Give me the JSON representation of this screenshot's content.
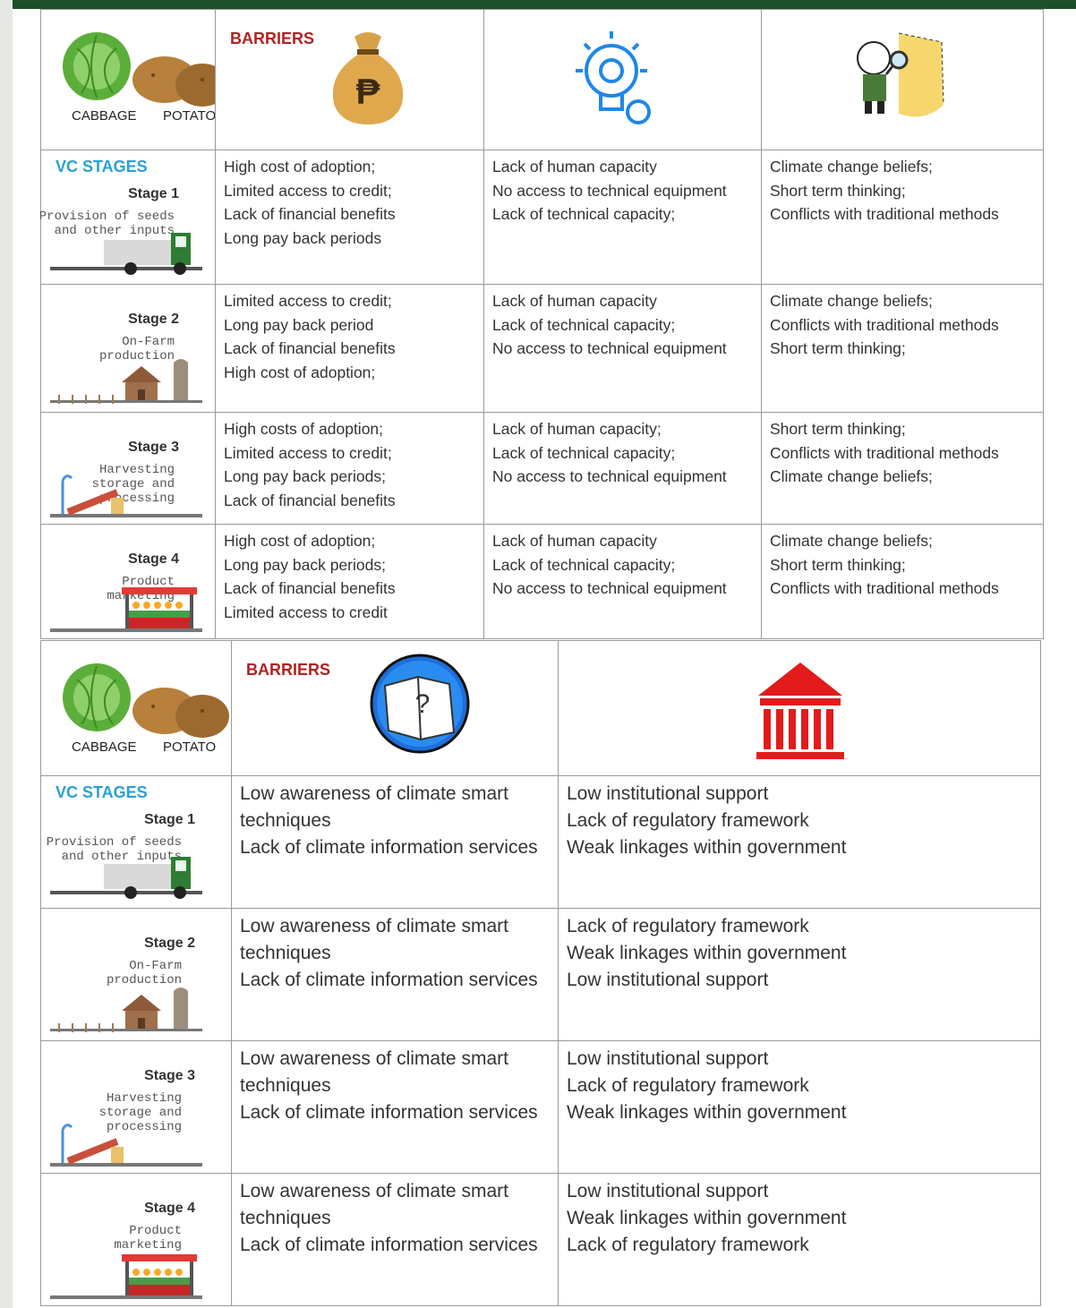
{
  "tables": [
    {
      "crops": [
        "CABBAGE",
        "POTATO"
      ],
      "barriers_label": "BARRIERS",
      "vc_stages_label": "VC STAGES",
      "rows": [
        {
          "stage": "Stage 1",
          "activity": [
            "Provision of seeds",
            "and other inputs"
          ],
          "barriers": [
            [
              "High cost of adoption;",
              "Limited access to credit;",
              "Lack of financial benefits",
              "Long pay back periods"
            ],
            [
              "Lack of human capacity",
              "No access to technical equipment",
              "Lack of technical capacity;"
            ],
            [
              "Climate change beliefs;",
              "Short term thinking;",
              "Conflicts with traditional methods"
            ]
          ]
        },
        {
          "stage": "Stage 2",
          "activity": [
            "On-Farm",
            "production"
          ],
          "barriers": [
            [
              "Limited access to credit;",
              "Long pay back period",
              "Lack of financial benefits",
              "High cost of adoption;"
            ],
            [
              "Lack of human capacity",
              "Lack of technical capacity;",
              "No access to technical equipment"
            ],
            [
              "Climate change beliefs;",
              "Conflicts with traditional methods",
              "Short term thinking;"
            ]
          ]
        },
        {
          "stage": "Stage 3",
          "activity": [
            "Harvesting",
            "storage and",
            "processing"
          ],
          "barriers": [
            [
              "High costs of adoption;",
              "Limited access to credit;",
              "Long pay back periods;",
              "Lack of financial benefits"
            ],
            [
              "Lack of human capacity;",
              "Lack of technical capacity;",
              "No access to technical equipment"
            ],
            [
              "Short term thinking;",
              "Conflicts with traditional methods",
              "Climate change beliefs;"
            ]
          ]
        },
        {
          "stage": "Stage 4",
          "activity": [
            "Product",
            "marketing"
          ],
          "barriers": [
            [
              "High cost of adoption;",
              "Long pay back periods;",
              "Lack of financial benefits",
              "Limited access to credit"
            ],
            [
              "Lack of human capacity",
              "Lack of technical capacity;",
              "No access to technical equipment"
            ],
            [
              "Climate change beliefs;",
              "Short term thinking;",
              "Conflicts with traditional methods"
            ]
          ]
        }
      ]
    },
    {
      "crops": [
        "CABBAGE",
        "POTATO"
      ],
      "barriers_label": "BARRIERS",
      "vc_stages_label": "VC STAGES",
      "rows": [
        {
          "stage": "Stage 1",
          "activity": [
            "Provision of seeds",
            "and other inputs"
          ],
          "barriers": [
            [
              "Low awareness of climate smart",
              "techniques",
              "Lack of climate information services"
            ],
            [
              "Low institutional support",
              "Lack of regulatory framework",
              "Weak linkages within government"
            ]
          ]
        },
        {
          "stage": "Stage 2",
          "activity": [
            "On-Farm",
            "production"
          ],
          "barriers": [
            [
              "Low awareness of climate smart",
              "techniques",
              "Lack of climate information services"
            ],
            [
              "Lack of regulatory framework",
              "Weak linkages within government",
              "Low institutional support"
            ]
          ]
        },
        {
          "stage": "Stage 3",
          "activity": [
            "Harvesting",
            "storage and",
            "processing"
          ],
          "barriers": [
            [
              "Low awareness of climate smart",
              "techniques",
              "Lack of climate information services"
            ],
            [
              "Low institutional support",
              "Lack of regulatory framework",
              "Weak linkages within government"
            ]
          ]
        },
        {
          "stage": "Stage 4",
          "activity": [
            "Product",
            "marketing"
          ],
          "barriers": [
            [
              "Low awareness of climate smart",
              "techniques",
              "Lack of climate information services"
            ],
            [
              "Low institutional support",
              "Weak linkages within government",
              "Lack of regulatory framework"
            ]
          ]
        }
      ]
    }
  ]
}
